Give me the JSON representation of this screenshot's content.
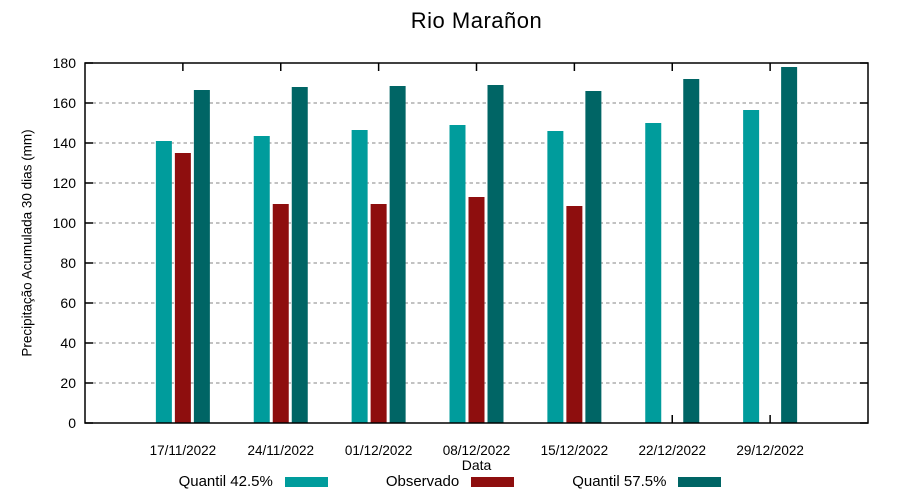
{
  "chart_data": {
    "type": "bar",
    "title": "Rio Marañon",
    "xlabel": "Data",
    "ylabel": "Precipitação Acumulada 30 dias (mm)",
    "categories": [
      "17/11/2022",
      "24/11/2022",
      "01/12/2022",
      "08/12/2022",
      "15/12/2022",
      "22/12/2022",
      "29/12/2022"
    ],
    "series": [
      {
        "name": "Quantil 42.5%",
        "color": "#009C9C",
        "values": [
          141,
          143.5,
          146.5,
          149,
          146,
          150,
          156.5
        ]
      },
      {
        "name": "Observado",
        "color": "#8E0E0E",
        "values": [
          135,
          109.5,
          109.5,
          113,
          108.5,
          null,
          null
        ]
      },
      {
        "name": "Quantil 57.5%",
        "color": "#006565",
        "values": [
          166.5,
          168,
          168.5,
          169,
          166,
          172,
          178
        ]
      }
    ],
    "ylim": [
      0,
      180
    ],
    "ytick_step": 20,
    "ytick_labels": [
      "0",
      "20",
      "40",
      "60",
      "80",
      "100",
      "120",
      "140",
      "160",
      "180"
    ],
    "grid": "horizontal-dashed",
    "legend_position": "bottom",
    "colors": {
      "background": "#ffffff",
      "axis": "#000000",
      "gridline": "#9e9e9e",
      "text": "#000000"
    }
  }
}
